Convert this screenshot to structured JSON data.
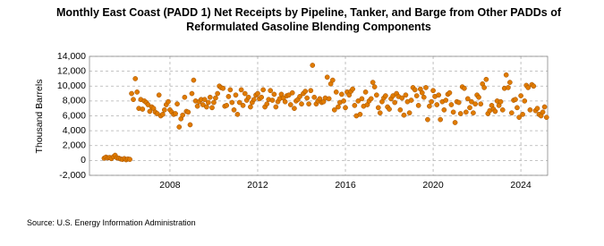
{
  "chart_data": {
    "type": "scatter",
    "title_lines": [
      "Monthly East Coast (PADD 1) Net Receipts by Pipeline, Tanker, and Barge from Other PADDs of",
      "Reformulated Gasoline Blending Components"
    ],
    "y_label": "Thousand Barrels",
    "source": "Source: U.S. Energy Information Administration",
    "xlim": [
      2004.33,
      2025.22
    ],
    "xticks": [
      2008,
      2012,
      2016,
      2020,
      2024
    ],
    "ylim": [
      -2000,
      14000
    ],
    "yticks": [
      {
        "value": -2000,
        "label": "-2,000"
      },
      0,
      {
        "value": 2000,
        "label": "2,000"
      },
      {
        "value": 4000,
        "label": "4,000"
      },
      {
        "value": 6000,
        "label": "6,000"
      },
      {
        "value": 8000,
        "label": "8,000"
      },
      {
        "value": 10000,
        "label": "10,000"
      },
      {
        "value": 12000,
        "label": "12,000"
      },
      {
        "value": 14000,
        "label": "14,000"
      }
    ],
    "grid": true,
    "color": "#e07b00",
    "x": [
      2005,
      2005.08,
      2005.17,
      2005.25,
      2005.33,
      2005.42,
      2005.5,
      2005.58,
      2005.67,
      2005.75,
      2005.83,
      2005.92,
      2006,
      2006.08,
      2006.17,
      2006.25,
      2006.33,
      2006.42,
      2006.5,
      2006.58,
      2006.67,
      2006.75,
      2006.83,
      2006.92,
      2007,
      2007.08,
      2007.17,
      2007.25,
      2007.33,
      2007.42,
      2007.5,
      2007.58,
      2007.67,
      2007.75,
      2007.83,
      2007.92,
      2008,
      2008.08,
      2008.17,
      2008.25,
      2008.33,
      2008.42,
      2008.5,
      2008.58,
      2008.67,
      2008.75,
      2008.83,
      2008.92,
      2009,
      2009.08,
      2009.17,
      2009.25,
      2009.33,
      2009.42,
      2009.5,
      2009.58,
      2009.67,
      2009.75,
      2009.83,
      2009.92,
      2010,
      2010.08,
      2010.17,
      2010.25,
      2010.33,
      2010.42,
      2010.5,
      2010.58,
      2010.67,
      2010.75,
      2010.83,
      2010.92,
      2011,
      2011.08,
      2011.17,
      2011.25,
      2011.33,
      2011.42,
      2011.5,
      2011.58,
      2011.67,
      2011.75,
      2011.83,
      2011.92,
      2012,
      2012.08,
      2012.17,
      2012.25,
      2012.33,
      2012.42,
      2012.5,
      2012.58,
      2012.67,
      2012.75,
      2012.83,
      2012.92,
      2013,
      2013.08,
      2013.17,
      2013.25,
      2013.33,
      2013.42,
      2013.5,
      2013.58,
      2013.67,
      2013.75,
      2013.83,
      2013.92,
      2014,
      2014.08,
      2014.17,
      2014.25,
      2014.33,
      2014.42,
      2014.5,
      2014.58,
      2014.67,
      2014.75,
      2014.83,
      2014.92,
      2015,
      2015.08,
      2015.17,
      2015.25,
      2015.33,
      2015.42,
      2015.5,
      2015.58,
      2015.67,
      2015.75,
      2015.83,
      2015.92,
      2016,
      2016.08,
      2016.17,
      2016.25,
      2016.33,
      2016.42,
      2016.5,
      2016.58,
      2016.67,
      2016.75,
      2016.83,
      2016.92,
      2017,
      2017.08,
      2017.17,
      2017.25,
      2017.33,
      2017.42,
      2017.5,
      2017.58,
      2017.67,
      2017.75,
      2017.83,
      2017.92,
      2018,
      2018.08,
      2018.17,
      2018.25,
      2018.33,
      2018.42,
      2018.5,
      2018.58,
      2018.67,
      2018.75,
      2018.83,
      2018.92,
      2019,
      2019.08,
      2019.17,
      2019.25,
      2019.33,
      2019.42,
      2019.5,
      2019.58,
      2019.67,
      2019.75,
      2019.83,
      2019.92,
      2020,
      2020.08,
      2020.17,
      2020.25,
      2020.33,
      2020.42,
      2020.5,
      2020.58,
      2020.67,
      2020.75,
      2020.83,
      2020.92,
      2021,
      2021.08,
      2021.17,
      2021.25,
      2021.33,
      2021.42,
      2021.5,
      2021.58,
      2021.67,
      2021.75,
      2021.83,
      2021.92,
      2022,
      2022.08,
      2022.17,
      2022.25,
      2022.33,
      2022.42,
      2022.5,
      2022.58,
      2022.67,
      2022.75,
      2022.83,
      2022.92,
      2023,
      2023.08,
      2023.17,
      2023.25,
      2023.33,
      2023.42,
      2023.5,
      2023.58,
      2023.67,
      2023.75,
      2023.83,
      2023.92,
      2024,
      2024.08,
      2024.17,
      2024.25,
      2024.33,
      2024.42,
      2024.5,
      2024.58,
      2024.67,
      2024.75,
      2024.83,
      2024.92,
      2025,
      2025.08,
      2025.17
    ],
    "values": [
      300,
      450,
      350,
      400,
      250,
      500,
      700,
      350,
      300,
      200,
      150,
      250,
      100,
      200,
      150,
      9000,
      8200,
      11000,
      9200,
      7000,
      8200,
      6900,
      8000,
      7800,
      7500,
      6600,
      7200,
      7000,
      6500,
      6300,
      8800,
      6000,
      6200,
      6800,
      7500,
      7900,
      6800,
      6500,
      6200,
      6300,
      7600,
      4500,
      5600,
      6100,
      8500,
      6600,
      6500,
      4800,
      9000,
      10800,
      8000,
      7300,
      7900,
      8200,
      7500,
      8200,
      7200,
      7800,
      8500,
      7100,
      7800,
      8400,
      9000,
      10000,
      9800,
      9700,
      7300,
      7400,
      8600,
      9500,
      7800,
      6800,
      8800,
      6200,
      7800,
      9500,
      7400,
      9000,
      8100,
      8500,
      7200,
      7800,
      8200,
      8800,
      9000,
      8300,
      8500,
      9500,
      7200,
      7600,
      8200,
      9400,
      8100,
      8900,
      7200,
      7900,
      8300,
      8900,
      8400,
      7900,
      8700,
      8800,
      7500,
      9100,
      7000,
      8000,
      8200,
      8600,
      7600,
      9000,
      9300,
      8400,
      7600,
      9400,
      12800,
      8500,
      7600,
      8000,
      8300,
      7800,
      7900,
      8400,
      11200,
      8300,
      10300,
      10800,
      6800,
      9200,
      7200,
      7800,
      8900,
      8000,
      7100,
      9200,
      8800,
      9300,
      9600,
      7400,
      6000,
      8000,
      6200,
      8300,
      7300,
      9200,
      7500,
      8000,
      8300,
      10500,
      9900,
      8800,
      7100,
      6400,
      7900,
      8400,
      8700,
      7200,
      6900,
      8300,
      8700,
      7800,
      9000,
      8600,
      6800,
      8400,
      6100,
      8800,
      7900,
      6400,
      8100,
      9800,
      9500,
      8700,
      7400,
      9600,
      9100,
      8500,
      9800,
      5500,
      7300,
      7900,
      9400,
      8600,
      7500,
      8800,
      5500,
      7900,
      6800,
      8100,
      8900,
      9100,
      7500,
      6500,
      5100,
      7900,
      7800,
      6300,
      9900,
      9700,
      6500,
      8300,
      7100,
      7900,
      6400,
      7600,
      8800,
      8500,
      7600,
      10300,
      9800,
      10900,
      6300,
      6700,
      7400,
      6900,
      6600,
      8000,
      7400,
      7900,
      6800,
      9700,
      11500,
      9800,
      10500,
      6400,
      8100,
      8200,
      7100,
      5800,
      8700,
      6200,
      8000,
      10100,
      9800,
      6800,
      10200,
      10000,
      6700,
      7000,
      6200,
      6000,
      6500,
      7200,
      5800
    ]
  }
}
